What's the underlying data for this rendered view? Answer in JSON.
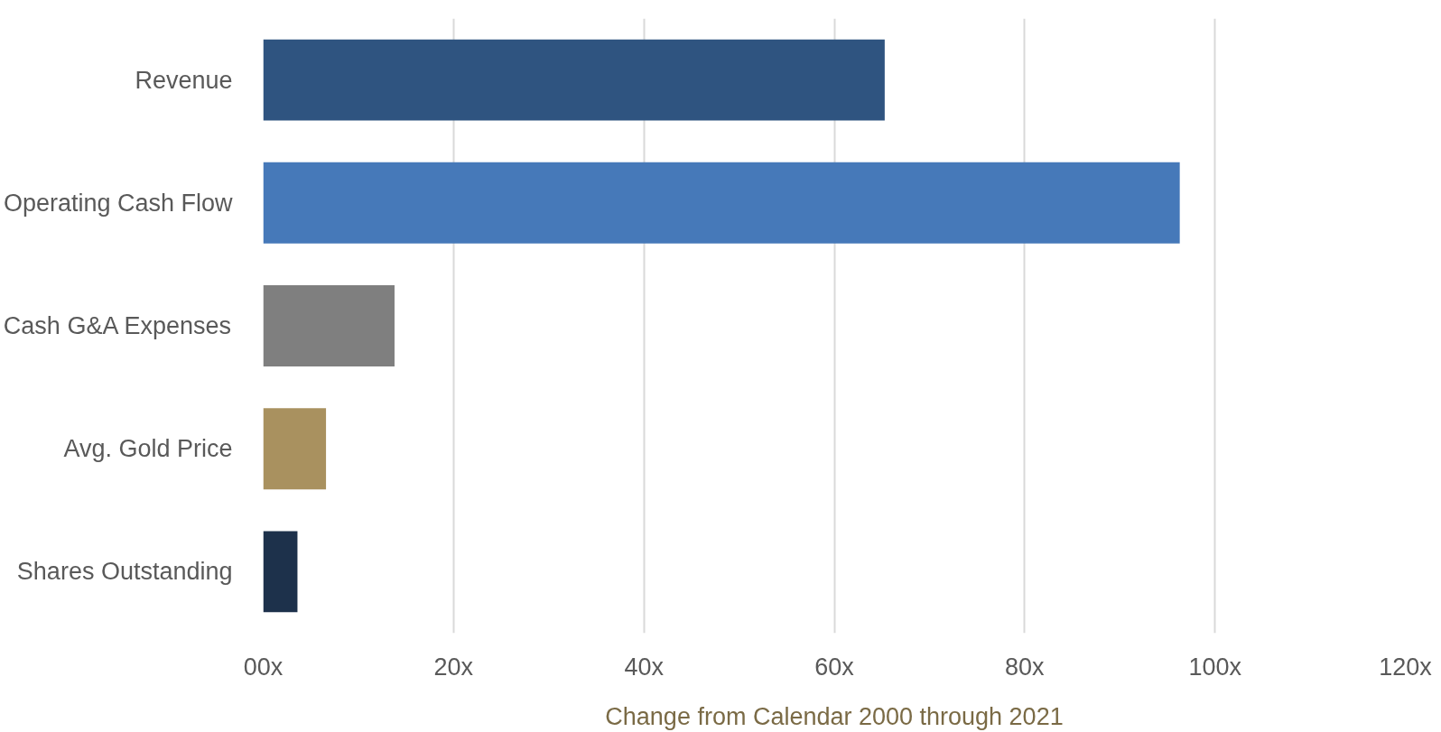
{
  "chart_data": {
    "type": "bar",
    "orientation": "horizontal",
    "categories": [
      "Revenue",
      "Operating Cash Flow",
      "Cash G&A Expenses",
      "Avg. Gold Price",
      "Shares Outstanding"
    ],
    "values": [
      65.3,
      96.3,
      13.8,
      6.6,
      3.6
    ],
    "colors": [
      "#2f5480",
      "#4679b9",
      "#7f7f7f",
      "#a9915f",
      "#1d314b"
    ],
    "xlabel": "Change from Calendar 2000 through 2021",
    "xlim": [
      0,
      120
    ],
    "xticks": [
      {
        "value": 0,
        "label": "00x"
      },
      {
        "value": 20,
        "label": "20x"
      },
      {
        "value": 40,
        "label": "40x"
      },
      {
        "value": 60,
        "label": "60x"
      },
      {
        "value": 80,
        "label": "80x"
      },
      {
        "value": 100,
        "label": "100x"
      },
      {
        "value": 120,
        "label": "120x"
      }
    ],
    "grid": "x"
  }
}
